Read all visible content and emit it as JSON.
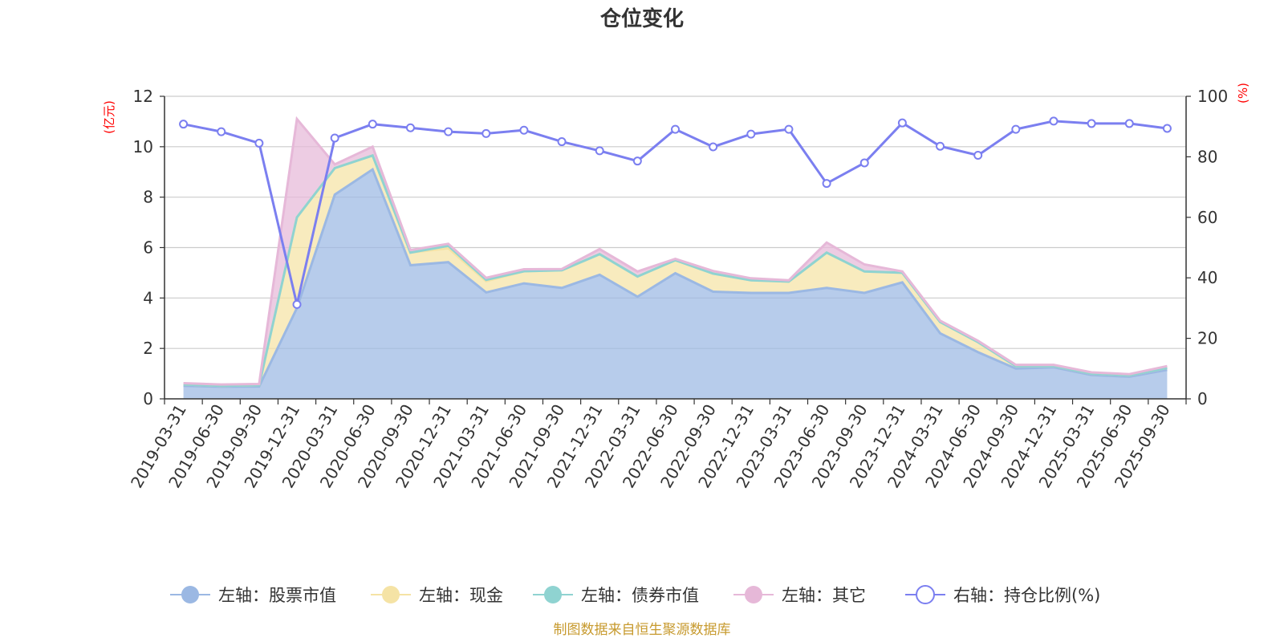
{
  "chart_data": {
    "type": "area",
    "title": "仓位变化",
    "left_axis": {
      "unit_label": "(亿元)",
      "ylim": [
        0,
        12
      ],
      "ticks": [
        0,
        2,
        4,
        6,
        8,
        10,
        12
      ]
    },
    "right_axis": {
      "unit_label": "(%)",
      "ylim": [
        0,
        100
      ],
      "ticks": [
        0,
        20,
        40,
        60,
        80,
        100
      ]
    },
    "categories": [
      "2019-03-31",
      "2019-06-30",
      "2019-09-30",
      "2019-12-31",
      "2020-03-31",
      "2020-06-30",
      "2020-09-30",
      "2020-12-31",
      "2021-03-31",
      "2021-06-30",
      "2021-09-30",
      "2021-12-31",
      "2022-03-31",
      "2022-06-30",
      "2022-09-30",
      "2022-12-31",
      "2023-03-31",
      "2023-06-30",
      "2023-09-30",
      "2023-12-31",
      "2024-03-31",
      "2024-06-30",
      "2024-09-30",
      "2024-12-31",
      "2025-03-31",
      "2025-06-30",
      "2025-09-30"
    ],
    "series": [
      {
        "name": "左轴：股票市值",
        "axis": "left",
        "kind": "area",
        "color": "#9bb8e3",
        "values": [
          0.52,
          0.48,
          0.49,
          3.6,
          8.1,
          9.1,
          5.3,
          5.42,
          4.22,
          4.58,
          4.4,
          4.92,
          4.05,
          4.98,
          4.25,
          4.2,
          4.2,
          4.4,
          4.2,
          4.62,
          2.6,
          1.85,
          1.2,
          1.25,
          0.95,
          0.88,
          1.15
        ]
      },
      {
        "name": "左轴：现金",
        "axis": "left",
        "kind": "area",
        "color": "#f5e3a5",
        "values": [
          0.05,
          0.04,
          0.05,
          3.6,
          1.05,
          0.55,
          0.5,
          0.55,
          0.45,
          0.48,
          0.7,
          0.82,
          0.8,
          0.52,
          0.72,
          0.5,
          0.45,
          1.4,
          0.85,
          0.38,
          0.45,
          0.4,
          0.1,
          0.05,
          0.05,
          0.05,
          0.08
        ]
      },
      {
        "name": "左轴：债券市值",
        "axis": "left",
        "kind": "area",
        "color": "#8fd3d1",
        "values": [
          0,
          0,
          0,
          0,
          0,
          0,
          0,
          0.1,
          0.05,
          0,
          0,
          0,
          0,
          0,
          0,
          0,
          0,
          0,
          0,
          0,
          0,
          0,
          0,
          0,
          0,
          0,
          0
        ]
      },
      {
        "name": "左轴：其它",
        "axis": "left",
        "kind": "area",
        "color": "#e6b8d8",
        "values": [
          0.05,
          0.05,
          0.05,
          3.9,
          0.15,
          0.35,
          0.1,
          0.08,
          0.08,
          0.08,
          0.05,
          0.2,
          0.2,
          0.05,
          0.1,
          0.08,
          0.05,
          0.4,
          0.28,
          0.05,
          0.05,
          0.05,
          0.05,
          0.05,
          0.05,
          0.05,
          0.07
        ]
      },
      {
        "name": "右轴：持仓比例(%)",
        "axis": "right",
        "kind": "line",
        "color": "#7b7ff0",
        "values": [
          90.8,
          88.3,
          84.5,
          31.2,
          86.2,
          90.8,
          89.6,
          88.3,
          87.7,
          88.8,
          85.0,
          82.0,
          78.6,
          89.1,
          83.3,
          87.5,
          89.1,
          71.2,
          78.0,
          91.2,
          83.5,
          80.5,
          89.1,
          91.8,
          91.0,
          91.0,
          89.4
        ]
      }
    ],
    "legend": {
      "placement": "bottom"
    }
  },
  "footer": {
    "source": "制图数据来自恒生聚源数据库"
  }
}
